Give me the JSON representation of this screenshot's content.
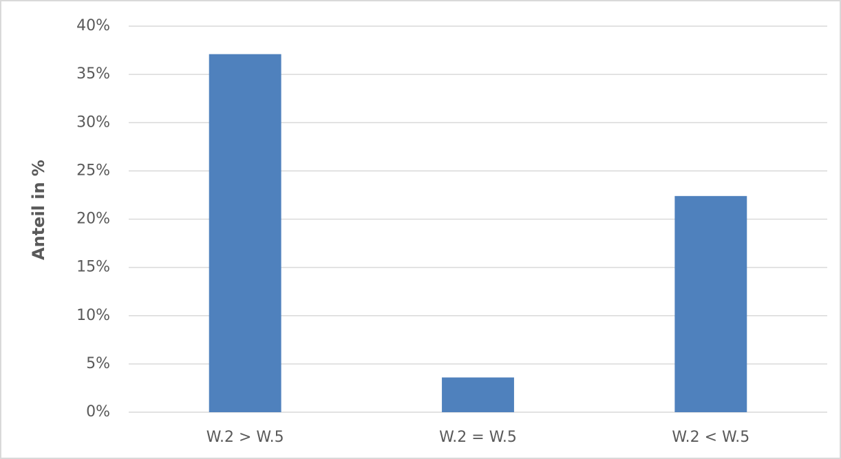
{
  "chart_data": {
    "type": "bar",
    "ylabel": "Anteil in %",
    "categories": [
      "W.2 > W.5",
      "W.2 = W.5",
      "W.2 < W.5"
    ],
    "values": [
      37.1,
      3.6,
      22.4
    ],
    "color": "#4f81bd",
    "ylim": [
      0,
      40
    ],
    "yticks": [
      {
        "value": 0,
        "label": "0%"
      },
      {
        "value": 5,
        "label": "5%"
      },
      {
        "value": 10,
        "label": "10%"
      },
      {
        "value": 15,
        "label": "15%"
      },
      {
        "value": 20,
        "label": "20%"
      },
      {
        "value": 25,
        "label": "25%"
      },
      {
        "value": 30,
        "label": "30%"
      },
      {
        "value": 35,
        "label": "35%"
      },
      {
        "value": 40,
        "label": "40%"
      }
    ],
    "grid": true
  }
}
